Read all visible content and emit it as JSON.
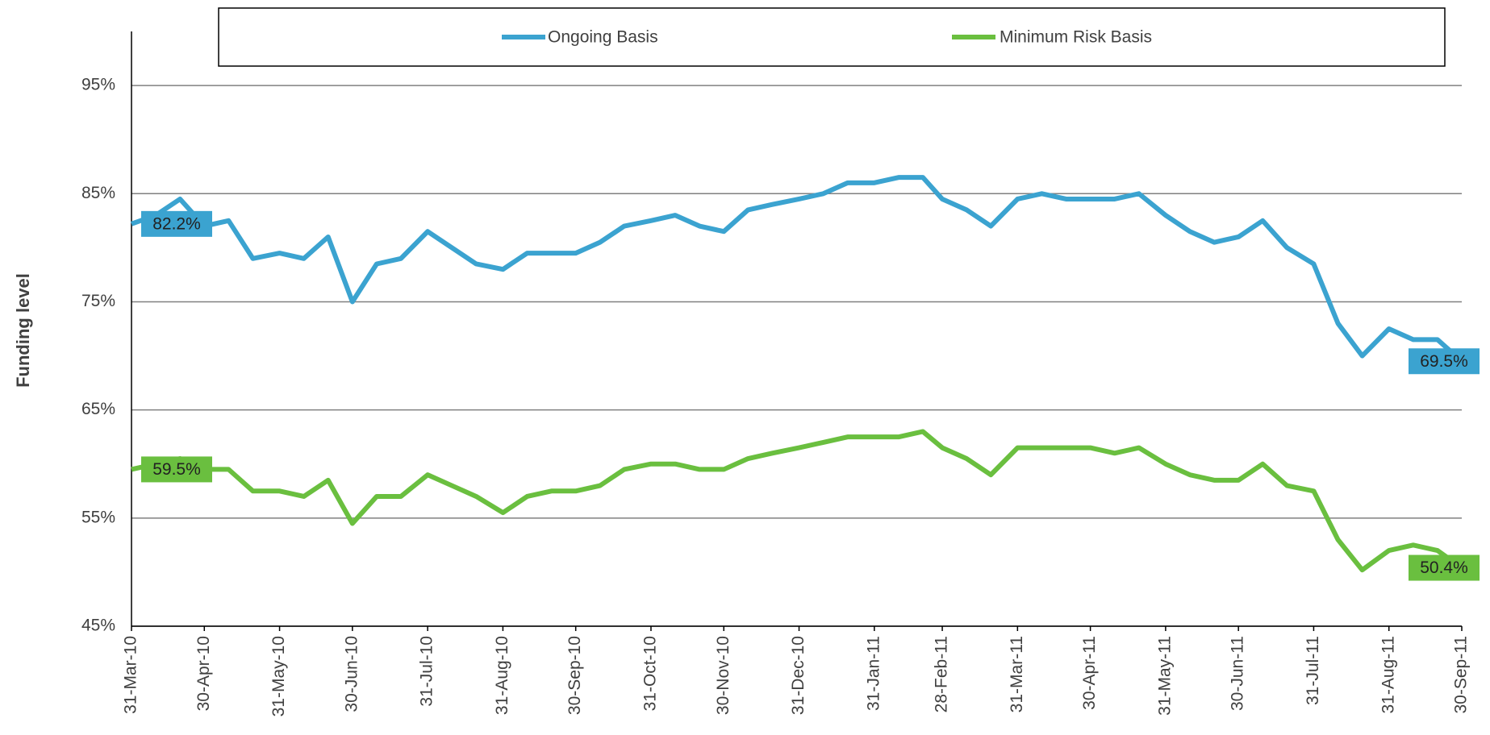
{
  "chart_data": {
    "type": "line",
    "y_label": "Funding level",
    "x": [
      "2010-03-31",
      "2010-04-10",
      "2010-04-20",
      "2010-04-30",
      "2010-05-10",
      "2010-05-20",
      "2010-05-31",
      "2010-06-10",
      "2010-06-20",
      "2010-06-30",
      "2010-07-10",
      "2010-07-20",
      "2010-07-31",
      "2010-08-10",
      "2010-08-20",
      "2010-08-31",
      "2010-09-10",
      "2010-09-20",
      "2010-09-30",
      "2010-10-10",
      "2010-10-20",
      "2010-10-31",
      "2010-11-10",
      "2010-11-20",
      "2010-11-30",
      "2010-12-10",
      "2010-12-20",
      "2010-12-31",
      "2011-01-10",
      "2011-01-20",
      "2011-01-31",
      "2011-02-10",
      "2011-02-20",
      "2011-02-28",
      "2011-03-10",
      "2011-03-20",
      "2011-03-31",
      "2011-04-10",
      "2011-04-20",
      "2011-04-30",
      "2011-05-10",
      "2011-05-20",
      "2011-05-31",
      "2011-06-10",
      "2011-06-20",
      "2011-06-30",
      "2011-07-10",
      "2011-07-20",
      "2011-07-31",
      "2011-08-10",
      "2011-08-20",
      "2011-08-31",
      "2011-09-10",
      "2011-09-20",
      "2011-09-30"
    ],
    "series": [
      {
        "name": "Ongoing Basis",
        "color": "#3ba3d0",
        "values": [
          82.2,
          83,
          84.5,
          82,
          82.5,
          79,
          79.5,
          79,
          81,
          75,
          78.5,
          79,
          81.5,
          80,
          78.5,
          78,
          79.5,
          79.5,
          79.5,
          80.5,
          82,
          82.5,
          83,
          82,
          81.5,
          83.5,
          84,
          84.5,
          85,
          86,
          86,
          86.5,
          86.5,
          84.5,
          83.5,
          82,
          84.5,
          85,
          84.5,
          84.5,
          84.5,
          85,
          83,
          81.5,
          80.5,
          81,
          82.5,
          80,
          78.5,
          73,
          70,
          72.5,
          71.5,
          71.5,
          69.5
        ],
        "value_labels": [
          "82.2%",
          null,
          null,
          null,
          null,
          null,
          null,
          null,
          null,
          null,
          null,
          null,
          null,
          null,
          null,
          null,
          null,
          null,
          null,
          null,
          null,
          null,
          null,
          null,
          null,
          null,
          null,
          null,
          null,
          null,
          null,
          null,
          null,
          null,
          null,
          null,
          null,
          null,
          null,
          null,
          null,
          null,
          null,
          null,
          null,
          null,
          null,
          null,
          null,
          null,
          null,
          null,
          null,
          null,
          "69.5%"
        ]
      },
      {
        "name": "Minimum Risk Basis",
        "color": "#6abf3f",
        "values": [
          59.5,
          60,
          60.5,
          59.5,
          59.5,
          57.5,
          57.5,
          57,
          58.5,
          54.5,
          57,
          57,
          59,
          58,
          57,
          55.5,
          57,
          57.5,
          57.5,
          58,
          59.5,
          60,
          60,
          59.5,
          59.5,
          60.5,
          61,
          61.5,
          62,
          62.5,
          62.5,
          62.5,
          63,
          61.5,
          60.5,
          59,
          61.5,
          61.5,
          61.5,
          61.5,
          61,
          61.5,
          60,
          59,
          58.5,
          58.5,
          60,
          58,
          57.5,
          53,
          50.2,
          52,
          52.5,
          52,
          50.4
        ],
        "value_labels": [
          "59.5%",
          null,
          null,
          null,
          null,
          null,
          null,
          null,
          null,
          null,
          null,
          null,
          null,
          null,
          null,
          null,
          null,
          null,
          null,
          null,
          null,
          null,
          null,
          null,
          null,
          null,
          null,
          null,
          null,
          null,
          null,
          null,
          null,
          null,
          null,
          null,
          null,
          null,
          null,
          null,
          null,
          null,
          null,
          null,
          null,
          null,
          null,
          null,
          null,
          null,
          null,
          null,
          null,
          null,
          "50.4%"
        ]
      }
    ],
    "xlim": [
      "2010-03-31",
      "2011-09-30"
    ],
    "xticks": [
      {
        "value": "2010-03-31",
        "label": "31-Mar-10"
      },
      {
        "value": "2010-04-30",
        "label": "30-Apr-10"
      },
      {
        "value": "2010-05-31",
        "label": "31-May-10"
      },
      {
        "value": "2010-06-30",
        "label": "30-Jun-10"
      },
      {
        "value": "2010-07-31",
        "label": "31-Jul-10"
      },
      {
        "value": "2010-08-31",
        "label": "31-Aug-10"
      },
      {
        "value": "2010-09-30",
        "label": "30-Sep-10"
      },
      {
        "value": "2010-10-31",
        "label": "31-Oct-10"
      },
      {
        "value": "2010-11-30",
        "label": "30-Nov-10"
      },
      {
        "value": "2010-12-31",
        "label": "31-Dec-10"
      },
      {
        "value": "2011-01-31",
        "label": "31-Jan-11"
      },
      {
        "value": "2011-02-28",
        "label": "28-Feb-11"
      },
      {
        "value": "2011-03-31",
        "label": "31-Mar-11"
      },
      {
        "value": "2011-04-30",
        "label": "30-Apr-11"
      },
      {
        "value": "2011-05-31",
        "label": "31-May-11"
      },
      {
        "value": "2011-06-30",
        "label": "30-Jun-11"
      },
      {
        "value": "2011-07-31",
        "label": "31-Jul-11"
      },
      {
        "value": "2011-08-31",
        "label": "31-Aug-11"
      },
      {
        "value": "2011-09-30",
        "label": "30-Sep-11"
      }
    ],
    "ylim": [
      45,
      100
    ],
    "yticks": [
      {
        "value": 45,
        "label": "45%"
      },
      {
        "value": 55,
        "label": "55%"
      },
      {
        "value": 65,
        "label": "65%"
      },
      {
        "value": 75,
        "label": "75%"
      },
      {
        "value": 85,
        "label": "85%"
      },
      {
        "value": 95,
        "label": "95%"
      }
    ],
    "grid": true,
    "legend": "top"
  }
}
